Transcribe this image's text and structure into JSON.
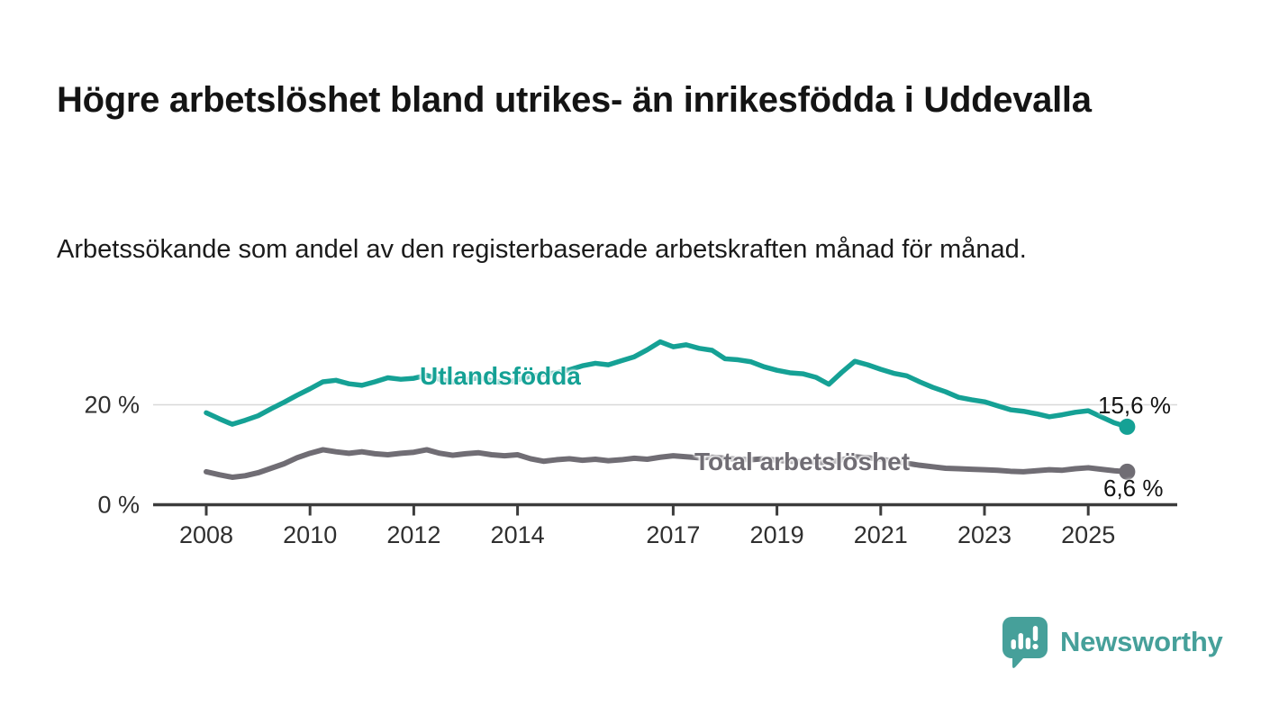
{
  "header": {
    "title": "Högre arbetslöshet bland utrikes- än inrikesfödda i Uddevalla",
    "subtitle": "Arbetssökande som andel av den registerbaserade arbetskraften månad för månad."
  },
  "chart_data": {
    "type": "line",
    "title": "Högre arbetslöshet bland utrikes- än inrikesfödda i Uddevalla",
    "subtitle": "Arbetssökande som andel av den registerbaserade arbetskraften månad för månad.",
    "xlabel": "",
    "ylabel": "",
    "grid": "horizontal gridline at 20 % only",
    "legend": "inline series labels on chart",
    "xlim": [
      2007.3,
      2026.7
    ],
    "ylim": [
      0,
      36
    ],
    "x_tick_labels": [
      "2008",
      "2010",
      "2012",
      "2014",
      "2017",
      "2019",
      "2021",
      "2023",
      "2025"
    ],
    "x_tick_years": [
      2008,
      2010,
      2012,
      2014,
      2017,
      2019,
      2021,
      2023,
      2025
    ],
    "y_ticks": [
      {
        "value": 0,
        "label": "0 %"
      },
      {
        "value": 20,
        "label": "20 %"
      }
    ],
    "x": [
      2008.0,
      2008.25,
      2008.5,
      2008.75,
      2009.0,
      2009.25,
      2009.5,
      2009.75,
      2010.0,
      2010.25,
      2010.5,
      2010.75,
      2011.0,
      2011.25,
      2011.5,
      2011.75,
      2012.0,
      2012.25,
      2012.5,
      2012.75,
      2013.0,
      2013.25,
      2013.5,
      2013.75,
      2014.0,
      2014.25,
      2014.5,
      2014.75,
      2015.0,
      2015.25,
      2015.5,
      2015.75,
      2016.0,
      2016.25,
      2016.5,
      2016.75,
      2017.0,
      2017.25,
      2017.5,
      2017.75,
      2018.0,
      2018.25,
      2018.5,
      2018.75,
      2019.0,
      2019.25,
      2019.5,
      2019.75,
      2020.0,
      2020.25,
      2020.5,
      2020.75,
      2021.0,
      2021.25,
      2021.5,
      2021.75,
      2022.0,
      2022.25,
      2022.5,
      2022.75,
      2023.0,
      2023.25,
      2023.5,
      2023.75,
      2024.0,
      2024.25,
      2024.5,
      2024.75,
      2025.0,
      2025.25,
      2025.5,
      2025.75
    ],
    "series": [
      {
        "name": "Utlandsfödda",
        "color": "#15a195",
        "end_label": "15,6 %",
        "end_value": 15.6,
        "values": [
          18.4,
          17.2,
          16.1,
          16.9,
          17.8,
          19.2,
          20.5,
          21.9,
          23.2,
          24.6,
          24.9,
          24.2,
          23.9,
          24.6,
          25.4,
          25.1,
          25.3,
          25.9,
          25.1,
          24.6,
          25.0,
          25.4,
          24.8,
          24.4,
          25.0,
          25.7,
          26.1,
          26.4,
          27.0,
          27.8,
          28.3,
          28.0,
          28.8,
          29.6,
          31.0,
          32.6,
          31.6,
          32.0,
          31.3,
          30.9,
          29.2,
          29.0,
          28.6,
          27.6,
          26.9,
          26.4,
          26.2,
          25.5,
          24.1,
          26.5,
          28.7,
          28.0,
          27.1,
          26.3,
          25.8,
          24.6,
          23.5,
          22.6,
          21.5,
          21.0,
          20.6,
          19.8,
          19.0,
          18.7,
          18.2,
          17.6,
          18.0,
          18.5,
          18.8,
          17.6,
          16.4,
          15.6
        ]
      },
      {
        "name": "Total arbetslöshet",
        "color": "#706d74",
        "end_label": "6,6 %",
        "end_value": 6.6,
        "values": [
          6.6,
          6.0,
          5.5,
          5.8,
          6.4,
          7.3,
          8.2,
          9.4,
          10.3,
          11.0,
          10.6,
          10.3,
          10.6,
          10.2,
          10.0,
          10.3,
          10.5,
          11.0,
          10.3,
          9.9,
          10.2,
          10.4,
          10.0,
          9.8,
          10.0,
          9.2,
          8.7,
          9.0,
          9.2,
          8.9,
          9.1,
          8.8,
          9.0,
          9.3,
          9.1,
          9.5,
          9.8,
          9.6,
          9.4,
          9.5,
          9.3,
          9.1,
          9.0,
          9.2,
          8.9,
          8.7,
          8.6,
          8.5,
          8.4,
          9.0,
          9.6,
          9.4,
          9.1,
          8.7,
          8.3,
          7.9,
          7.6,
          7.3,
          7.2,
          7.1,
          7.0,
          6.9,
          6.7,
          6.6,
          6.8,
          7.0,
          6.9,
          7.2,
          7.4,
          7.1,
          6.8,
          6.6
        ]
      }
    ]
  },
  "colors": {
    "utlandsfodda_line": "#15a195",
    "total_line": "#706d74",
    "gridline": "#d8d8d8",
    "axis": "#3c3c3c",
    "text": "#141414"
  },
  "footer": {
    "brand": "Newsworthy",
    "brand_color": "#46a09a",
    "logo_icon": "bar-chart-speech-bubble-icon"
  }
}
